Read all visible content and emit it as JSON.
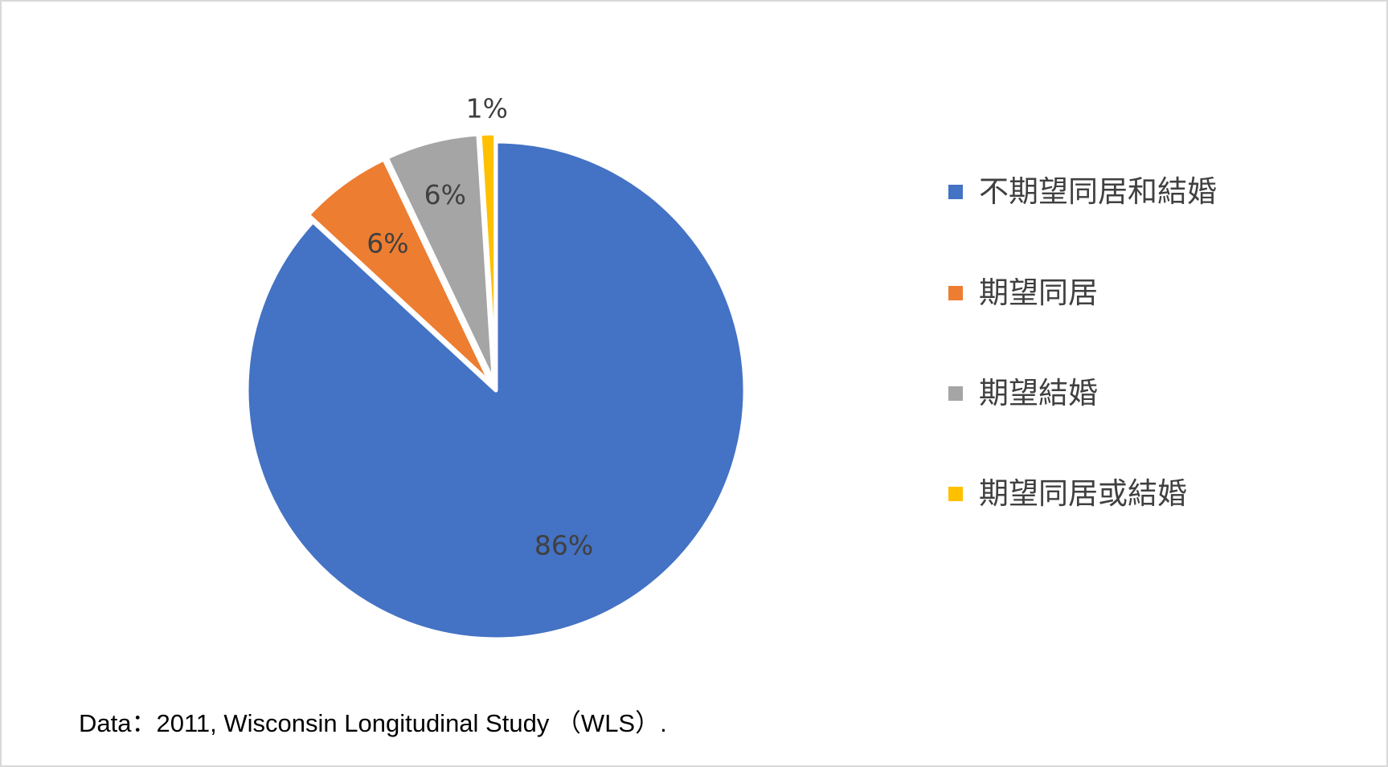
{
  "chart_data": {
    "type": "pie",
    "title": "",
    "slices": [
      {
        "label": "不期望同居和結婚",
        "value": 86,
        "display": "86%",
        "color": "#4472C4"
      },
      {
        "label": "期望同居",
        "value": 6,
        "display": "6%",
        "color": "#ED7D31"
      },
      {
        "label": "期望結婚",
        "value": 6,
        "display": "6%",
        "color": "#A5A5A5"
      },
      {
        "label": "期望同居或結婚",
        "value": 1,
        "display": "1%",
        "color": "#FFC000"
      }
    ],
    "legend_position": "right",
    "exploded": true
  },
  "source_note": "Data：2011, Wisconsin Longitudinal Study （WLS）."
}
